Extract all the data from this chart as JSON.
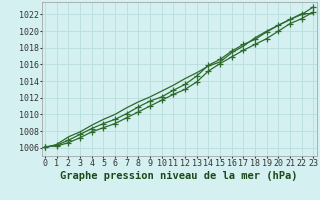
{
  "title": "Graphe pression niveau de la mer (hPa)",
  "background_color": "#d4f0f0",
  "grid_color": "#b8dede",
  "line_color": "#2d6a2d",
  "x_ticks": [
    0,
    1,
    2,
    3,
    4,
    5,
    6,
    7,
    8,
    9,
    10,
    11,
    12,
    13,
    14,
    15,
    16,
    17,
    18,
    19,
    20,
    21,
    22,
    23
  ],
  "y_ticks": [
    1006,
    1008,
    1010,
    1012,
    1014,
    1016,
    1018,
    1020,
    1022
  ],
  "ylim": [
    1005.0,
    1023.5
  ],
  "xlim": [
    -0.3,
    23.3
  ],
  "line1": [
    1006.1,
    1006.2,
    1006.6,
    1007.2,
    1007.9,
    1008.4,
    1008.9,
    1009.6,
    1010.3,
    1011.0,
    1011.7,
    1012.4,
    1013.0,
    1013.9,
    1015.2,
    1016.1,
    1016.9,
    1017.7,
    1018.4,
    1019.1,
    1020.0,
    1020.9,
    1021.5,
    1022.3
  ],
  "line2": [
    1006.1,
    1006.3,
    1006.9,
    1007.6,
    1008.3,
    1008.9,
    1009.4,
    1010.1,
    1010.9,
    1011.6,
    1012.1,
    1012.9,
    1013.6,
    1014.6,
    1015.9,
    1016.6,
    1017.6,
    1018.4,
    1019.0,
    1019.9,
    1020.7,
    1021.4,
    1022.0,
    1022.9
  ],
  "line3_smooth": [
    1006.0,
    1006.4,
    1007.3,
    1007.9,
    1008.7,
    1009.4,
    1010.0,
    1010.8,
    1011.5,
    1012.1,
    1012.8,
    1013.5,
    1014.3,
    1015.0,
    1015.8,
    1016.3,
    1017.4,
    1018.2,
    1019.2,
    1020.0,
    1020.7,
    1021.4,
    1022.1,
    1022.1
  ],
  "title_fontsize": 7.5,
  "tick_fontsize": 6.0,
  "title_color": "#1a4a1a"
}
